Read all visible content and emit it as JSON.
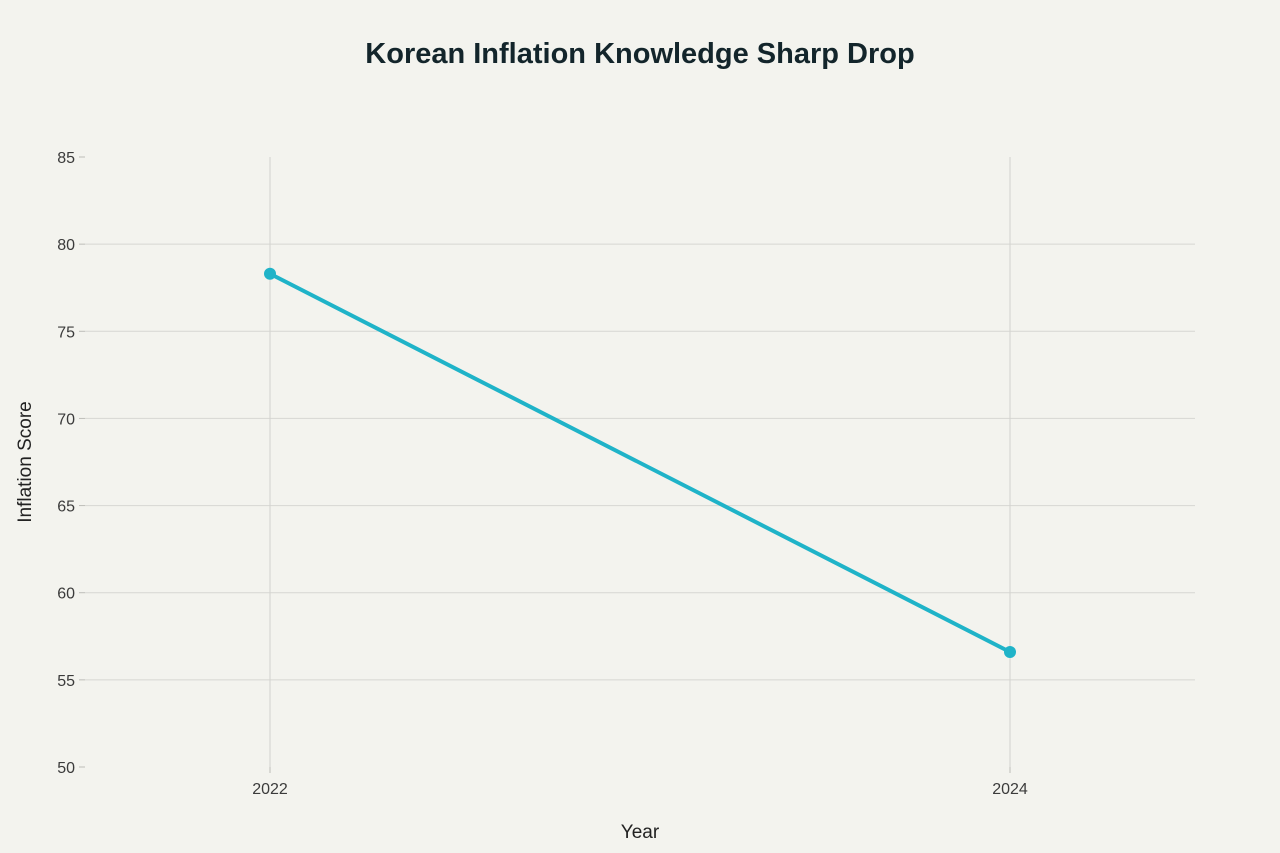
{
  "chart_data": {
    "type": "line",
    "title": "Korean Inflation Knowledge Sharp Drop",
    "xlabel": "Year",
    "ylabel": "Inflation Score",
    "x": [
      2022,
      2024
    ],
    "x_tick_labels": [
      "2022",
      "2024"
    ],
    "series": [
      {
        "values": [
          78.3,
          56.6
        ],
        "color": "#1fb3c8"
      }
    ],
    "ylim": [
      50,
      85
    ],
    "y_ticks": [
      50,
      55,
      60,
      65,
      70,
      75,
      80,
      85
    ],
    "grid": true,
    "legend": "none"
  }
}
